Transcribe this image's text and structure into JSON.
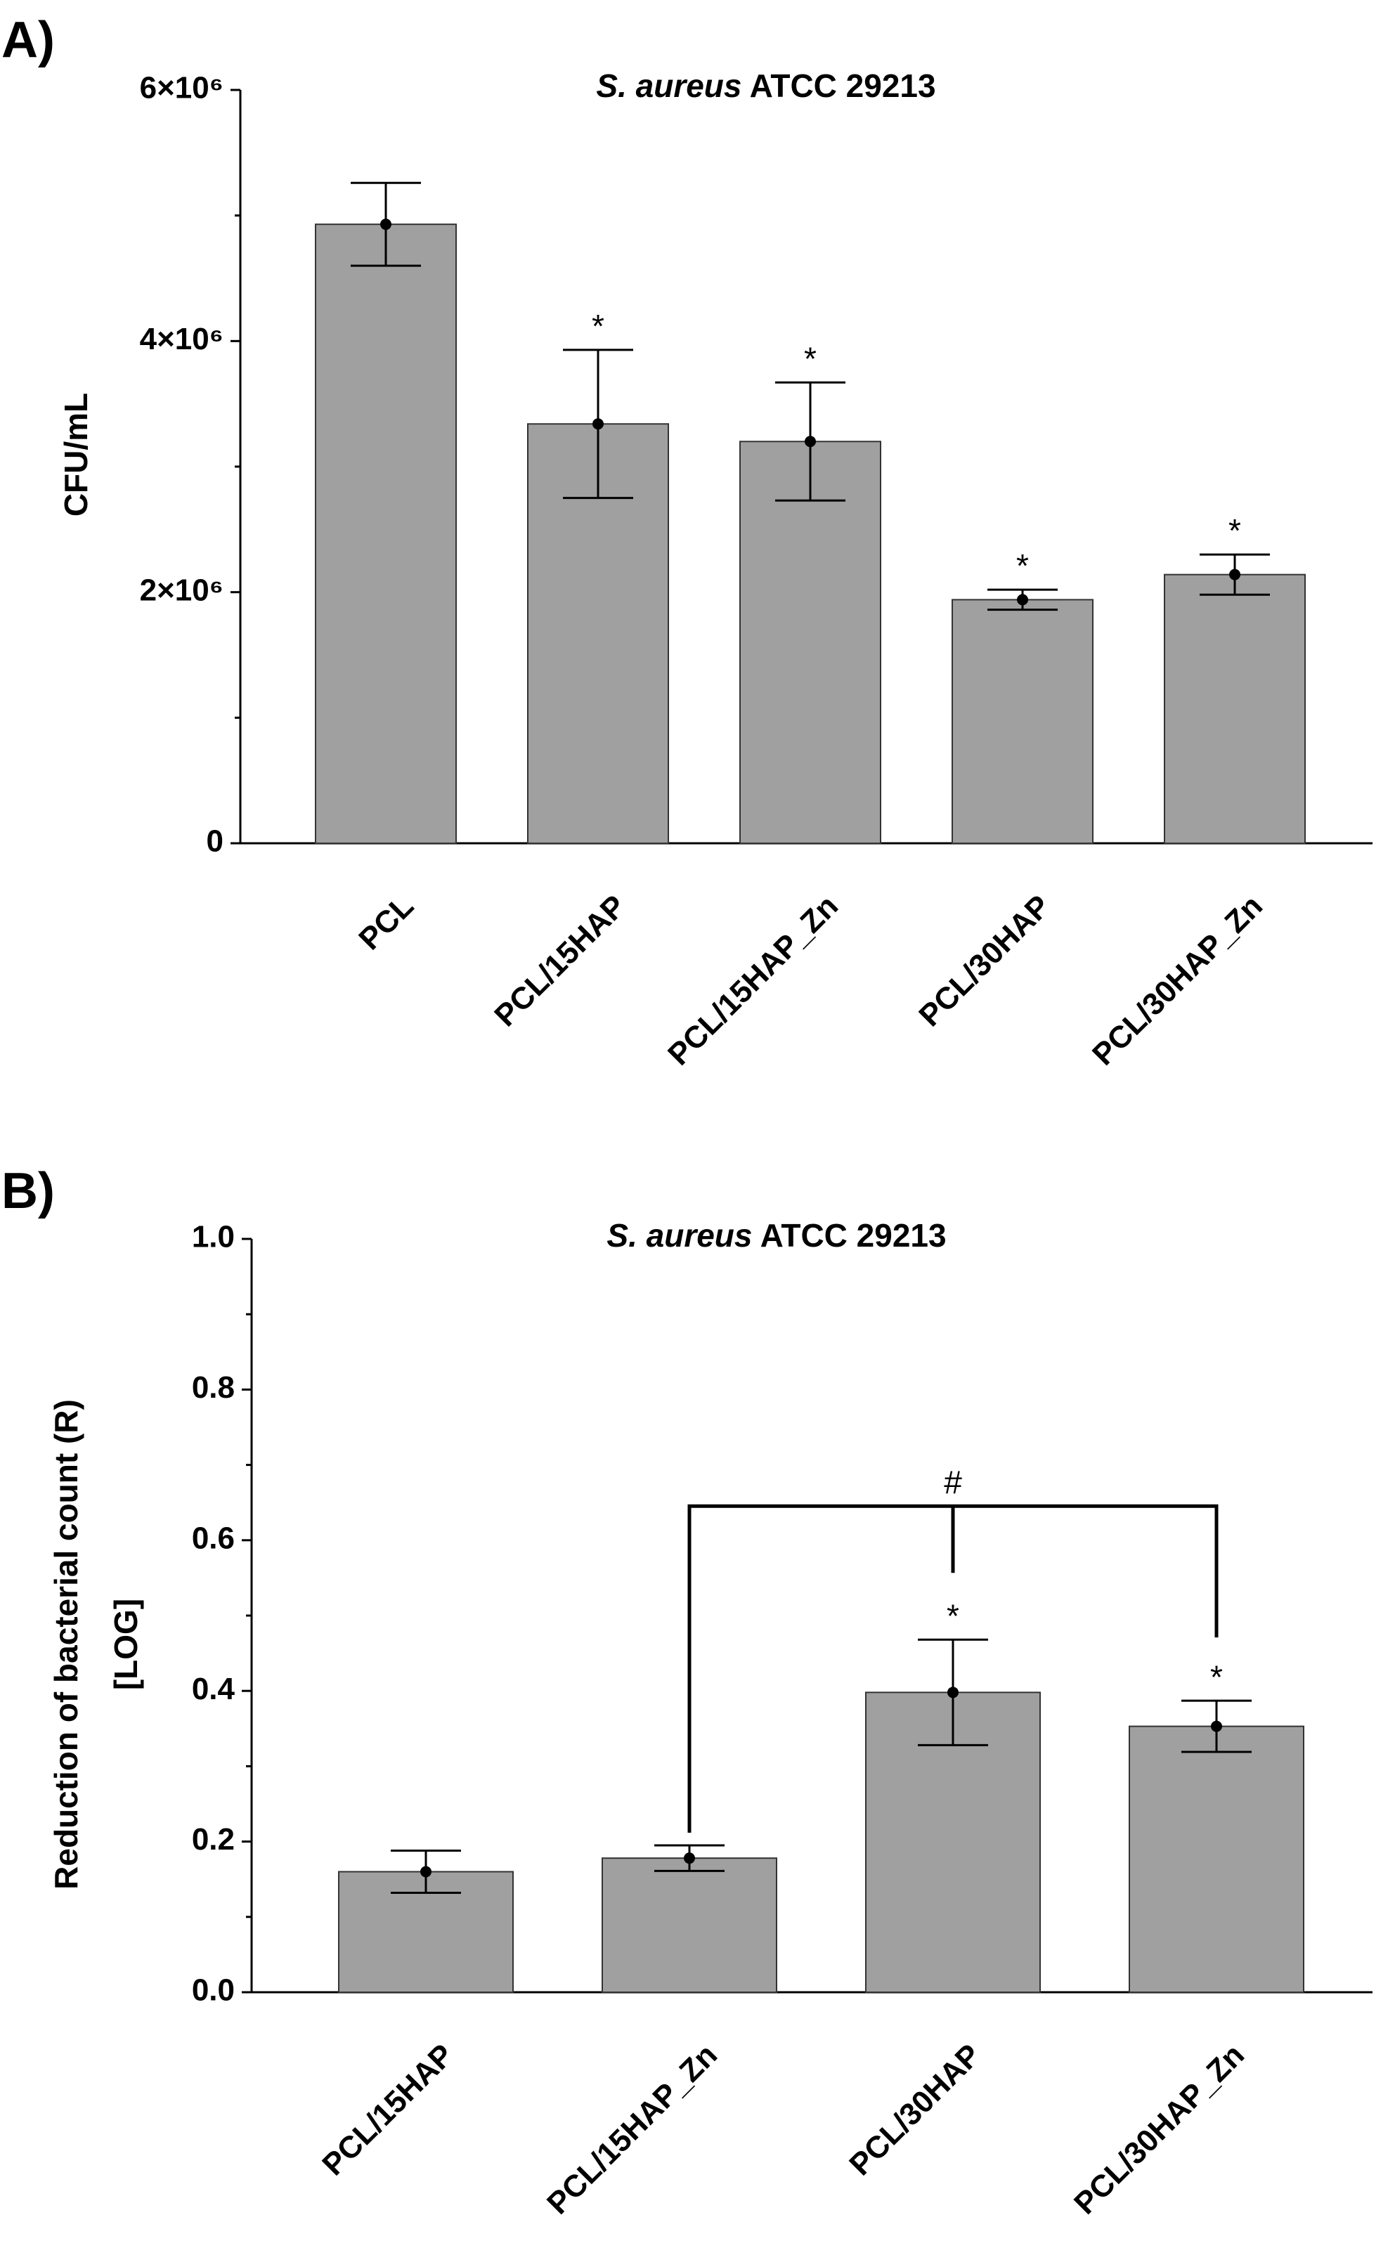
{
  "chart_data": [
    {
      "type": "bar",
      "panel": "A)",
      "title": [
        "S. aureus",
        "ATCC 29213"
      ],
      "ylabel": [
        "CFU/mL"
      ],
      "categories": [
        "PCL",
        "PCL/15HAP",
        "PCL/15HAP_Zn",
        "PCL/30HAP",
        "PCL/30HAP_Zn"
      ],
      "values": [
        4930000,
        3340000,
        3200000,
        1940000,
        2140000
      ],
      "errors": [
        330000,
        590000,
        470000,
        80000,
        160000
      ],
      "annotations": [
        null,
        "*",
        "*",
        "*",
        "*"
      ],
      "color": "#a0a0a0",
      "ylim": [
        0,
        6000000
      ],
      "yticks": [
        0,
        {
          "value": 2000000,
          "label": "2×10⁶"
        },
        {
          "value": 4000000,
          "label": "4×10⁶"
        },
        {
          "value": 6000000,
          "label": "6×10⁶"
        }
      ],
      "minor_yticks": [
        1000000,
        3000000,
        5000000
      ]
    },
    {
      "type": "bar",
      "panel": "B)",
      "title": [
        "S. aureus",
        "ATCC 29213"
      ],
      "ylabel": [
        "Reduction of bacterial count (R)",
        "[LOG]"
      ],
      "categories": [
        "PCL/15HAP",
        "PCL/15HAP_Zn",
        "PCL/30HAP",
        "PCL/30HAP_Zn"
      ],
      "values": [
        0.16,
        0.178,
        0.398,
        0.353
      ],
      "errors": [
        0.028,
        0.017,
        0.07,
        0.034
      ],
      "annotations": [
        null,
        null,
        "*",
        "*"
      ],
      "bracket": {
        "label": "#",
        "from": "PCL/15HAP_Zn",
        "mid": "PCL/30HAP",
        "to": "PCL/30HAP_Zn"
      },
      "color": "#a0a0a0",
      "ylim": [
        0,
        1
      ],
      "yticks": [
        {
          "value": 0,
          "label": "0.0"
        },
        0.2,
        0.4,
        0.6,
        0.8,
        {
          "value": 1,
          "label": "1.0"
        }
      ],
      "minor_yticks": [
        0.1,
        0.3,
        0.5,
        0.7,
        0.9
      ]
    }
  ]
}
